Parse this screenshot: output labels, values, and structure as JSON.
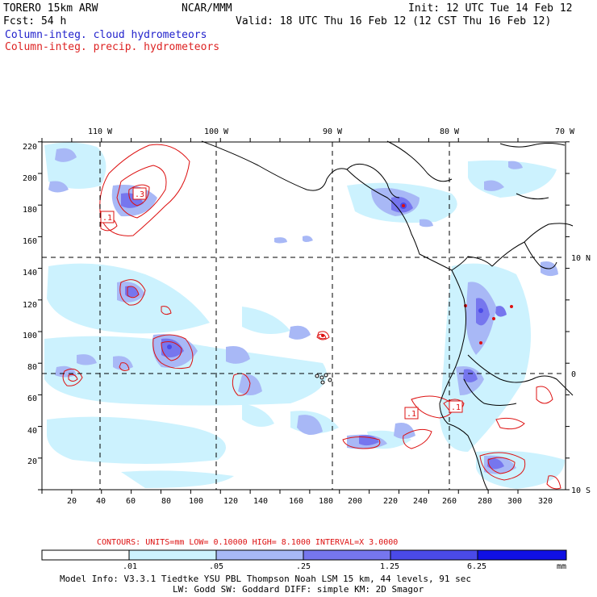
{
  "header": {
    "model": "TORERO  15km ARW",
    "org": "NCAR/MMM",
    "init": "Init: 12 UTC Tue 14 Feb 12",
    "fcst": "Fcst:   54 h",
    "valid": "Valid: 18 UTC Thu 16 Feb 12 (12 CST Thu 16 Feb 12)",
    "field1": "Column-integ. cloud hydrometeors",
    "field2": "Column-integ. precip. hydrometeors"
  },
  "axes": {
    "x_ticks": [
      "20",
      "40",
      "60",
      "80",
      "100",
      "120",
      "140",
      "160",
      "180",
      "200",
      "220",
      "240",
      "260",
      "280",
      "300",
      "320"
    ],
    "y_ticks": [
      "20",
      "40",
      "60",
      "80",
      "100",
      "120",
      "140",
      "160",
      "180",
      "200",
      "220"
    ],
    "lon_labels": [
      "110 W",
      "100 W",
      "90 W",
      "80 W",
      "70 W"
    ],
    "lat_labels": [
      "10 N",
      "0",
      "10 S"
    ]
  },
  "contour_labels": [
    ".3",
    ".1",
    ".1",
    ".1"
  ],
  "contours_line": "CONTOURS:  UNITS=mm  LOW= 0.10000     HIGH=  8.1000     INTERVAL=X  3.0000",
  "colorbar": {
    "labels": [
      ".01",
      ".05",
      ".25",
      "1.25",
      "6.25"
    ],
    "unit": "mm",
    "colors": [
      "#ffffff",
      "#ccf2fe",
      "#a8b8f6",
      "#7676ee",
      "#4a4ae8",
      "#1010e4"
    ]
  },
  "footer": {
    "line1": "Model Info: V3.3.1    Tiedtke YSU PBL  Thompson     Noah LSM  15 km,   44 levels,   91 sec",
    "line2": "LW: Godd SW: Goddard DIFF: simple KM: 2D Smagor"
  }
}
